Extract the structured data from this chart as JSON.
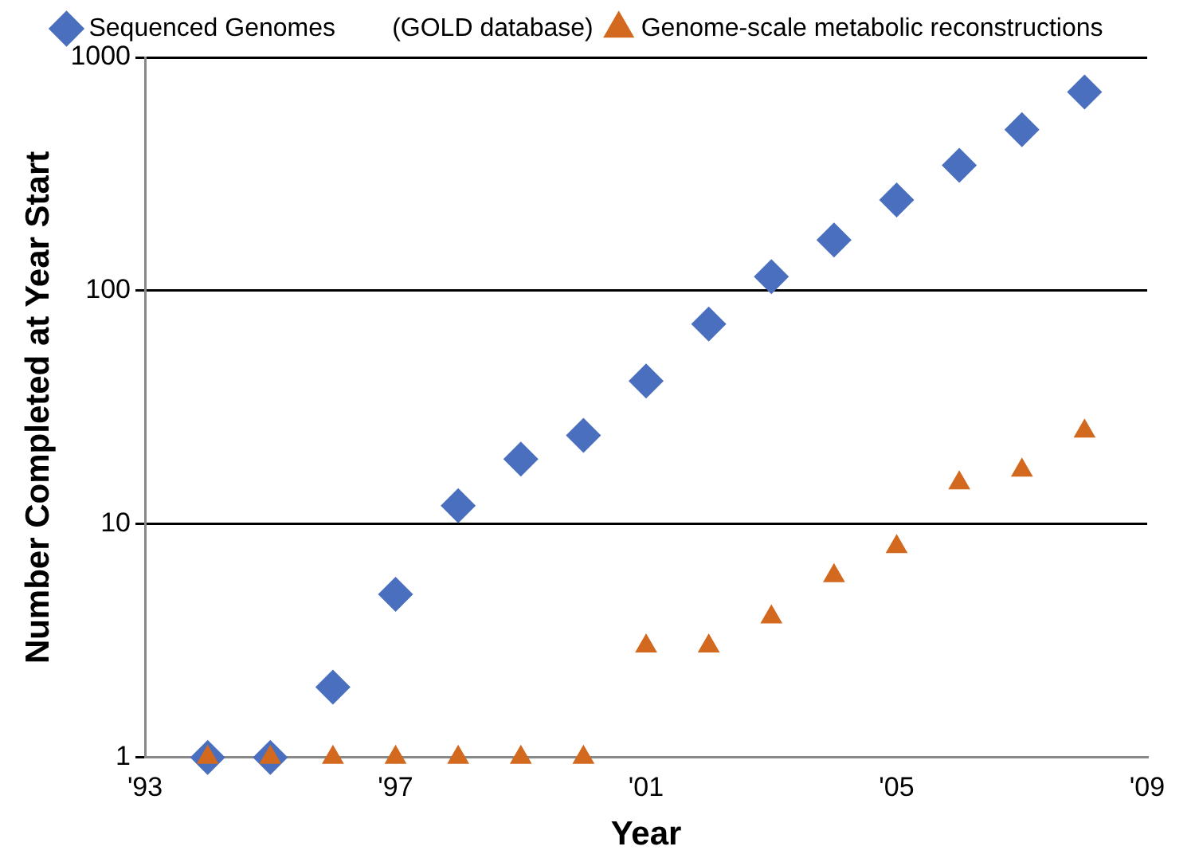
{
  "chart_data": {
    "type": "scatter",
    "xlabel": "Year",
    "ylabel": "Number Completed at Year Start",
    "x": [
      1994,
      1995,
      1996,
      1997,
      1998,
      1999,
      2000,
      2001,
      2002,
      2003,
      2004,
      2005,
      2006,
      2007,
      2008
    ],
    "series": [
      {
        "name": "Sequenced Genomes        (GOLD database)",
        "color": "#4a6fbf",
        "marker": "diamond",
        "values": [
          1,
          1,
          2,
          5,
          12,
          19,
          24,
          41,
          72,
          115,
          165,
          245,
          345,
          490,
          710
        ]
      },
      {
        "name": "Genome-scale metabolic reconstructions",
        "color": "#d2691e",
        "marker": "triangle",
        "values": [
          1,
          1,
          1,
          1,
          1,
          1,
          1,
          3,
          3,
          4,
          6,
          8,
          15,
          17,
          25
        ]
      }
    ],
    "xlim": [
      1993,
      2009
    ],
    "xticks": [
      {
        "value": 1993,
        "label": "'93"
      },
      {
        "value": 1997,
        "label": "'97"
      },
      {
        "value": 2001,
        "label": "'01"
      },
      {
        "value": 2005,
        "label": "'05"
      },
      {
        "value": 2009,
        "label": "'09"
      }
    ],
    "ylim": [
      1,
      1000
    ],
    "yticks": [
      1,
      10,
      100,
      1000
    ],
    "log": "y",
    "grid": "y",
    "legend": "top"
  }
}
